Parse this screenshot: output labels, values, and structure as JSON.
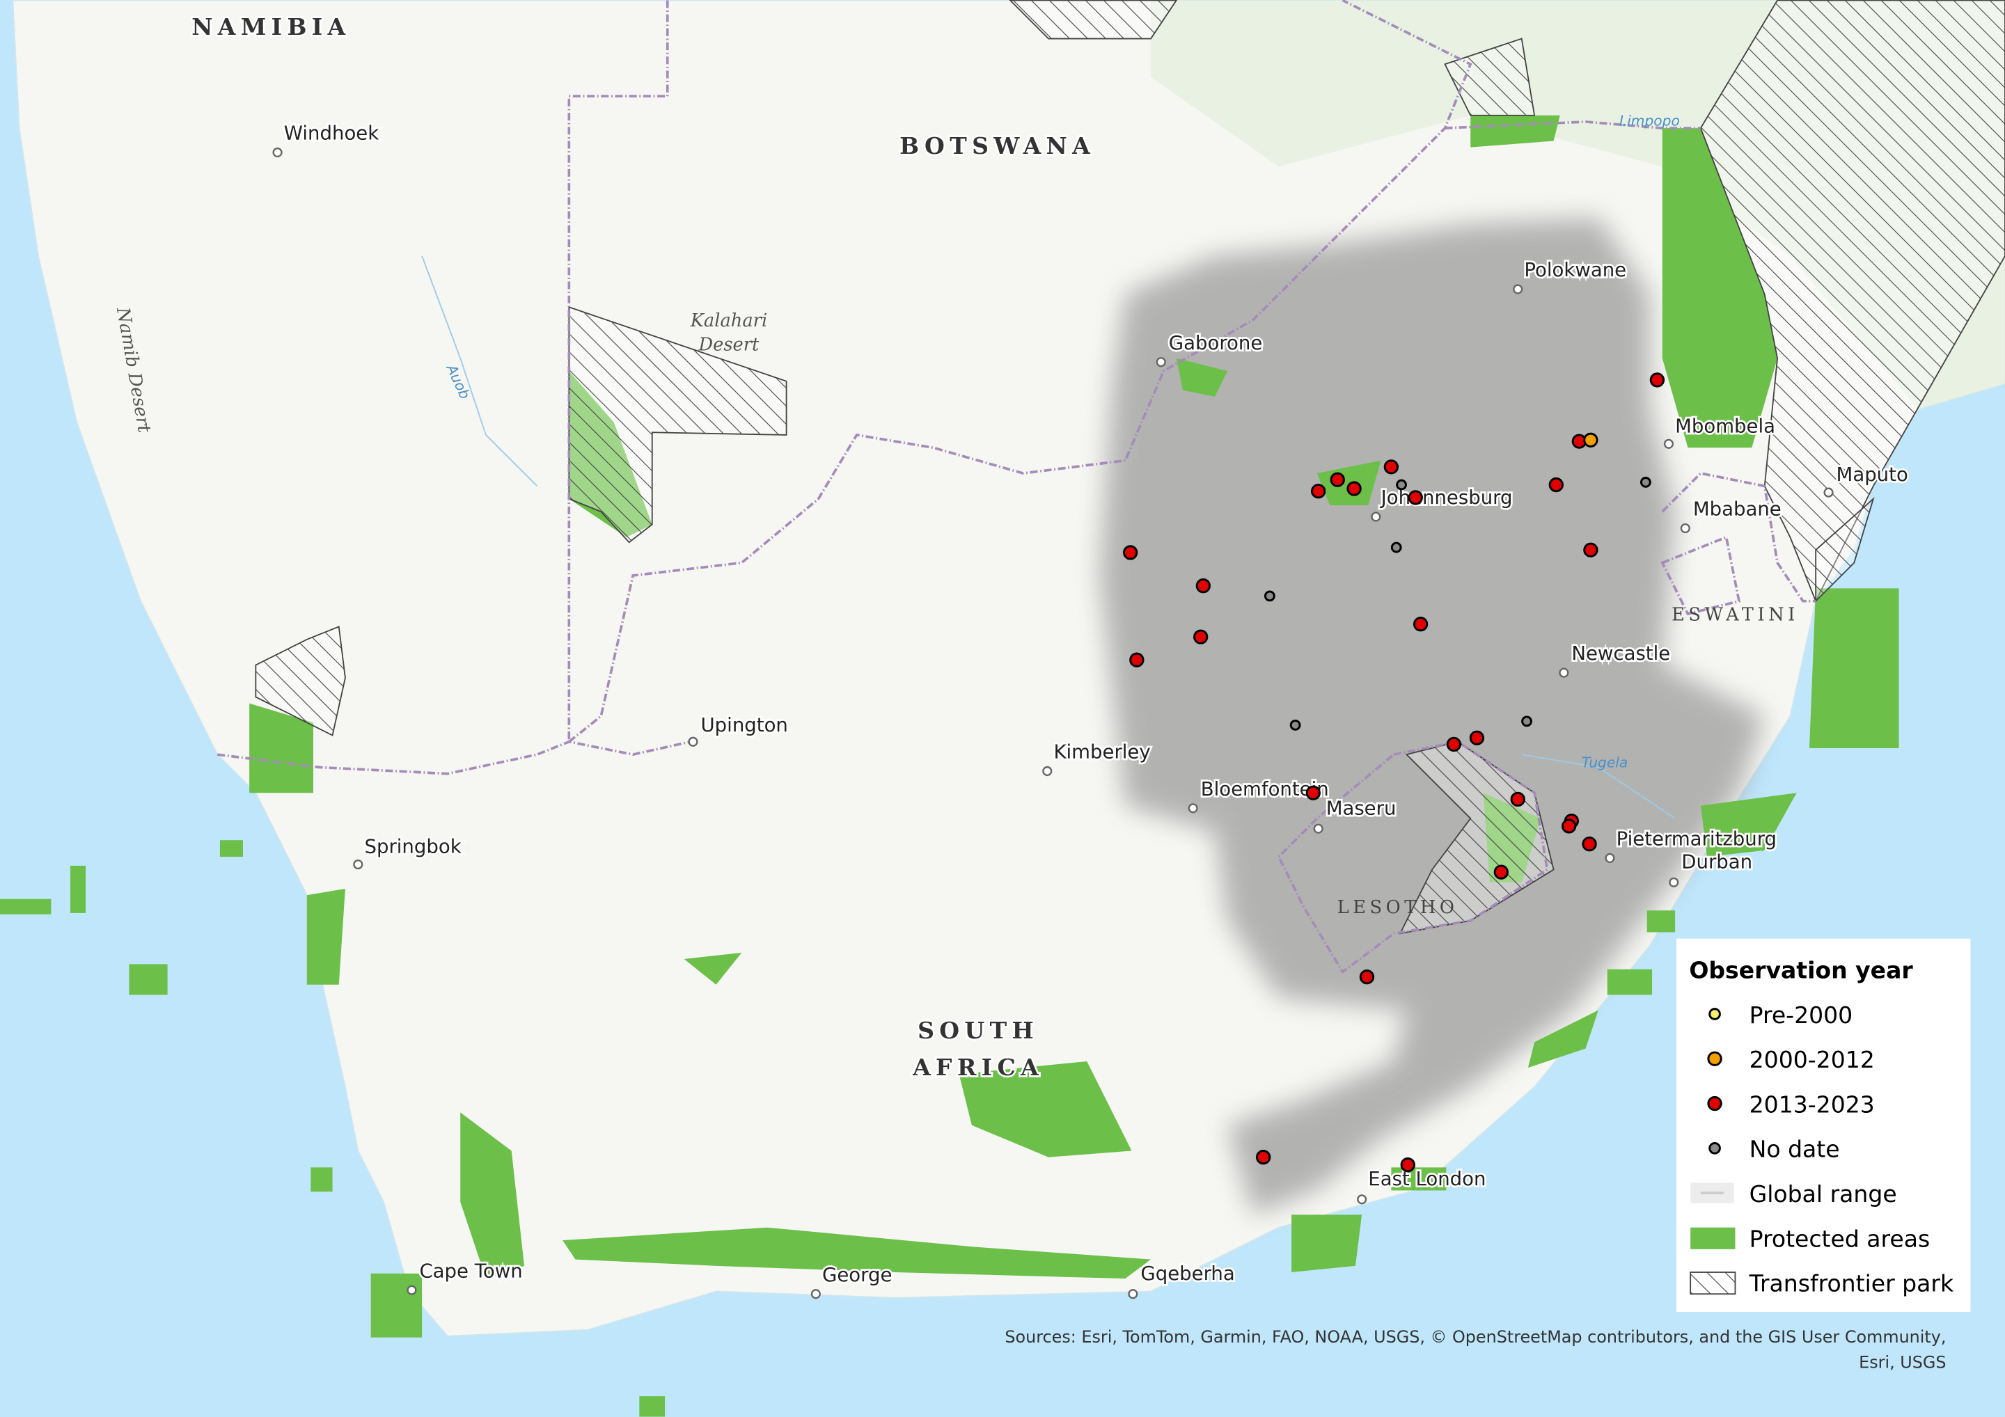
{
  "map": {
    "countries": {
      "namibia": "NAMIBIA",
      "botswana": "BOTSWANA",
      "south_africa_1": "SOUTH",
      "south_africa_2": "AFRICA",
      "lesotho": "LESOTHO",
      "eswatini": "ESWATINI"
    },
    "physical": {
      "kalahari_1": "Kalahari",
      "kalahari_2": "Desert",
      "namib": "Namib Desert",
      "auob": "Auob",
      "limpopo": "Limpopo",
      "tugela": "Tugela"
    },
    "cities": {
      "windhoek": "Windhoek",
      "gaborone": "Gaborone",
      "polokwane": "Polokwane",
      "mbombela": "Mbombela",
      "maputo": "Maputo",
      "mbabane": "Mbabane",
      "johannesburg": "Johannesburg",
      "newcastle": "Newcastle",
      "upington": "Upington",
      "kimberley": "Kimberley",
      "bloemfontein": "Bloemfontein",
      "maseru": "Maseru",
      "pietermaritzburg": "Pietermaritzburg",
      "durban": "Durban",
      "springbok": "Springbok",
      "east_london": "East London",
      "cape_town": "Cape Town",
      "george": "George",
      "gqeberha": "Gqeberha"
    },
    "observation_counts": {
      "pre_2000": 0,
      "2000_2012": 1,
      "2013_2023": 25,
      "no_date": 6
    }
  },
  "legend": {
    "title": "Observation year",
    "items": [
      {
        "label": "Pre-2000",
        "color": "#f7f06a"
      },
      {
        "label": "2000-2012",
        "color": "#f5a000"
      },
      {
        "label": "2013-2023",
        "color": "#e00000"
      },
      {
        "label": "No date",
        "color": "#8c8c8c"
      },
      {
        "label": "Global range",
        "color": "#9a9a9a"
      },
      {
        "label": "Protected areas",
        "color": "#6cc04a"
      },
      {
        "label": "Transfrontier park",
        "color": "#444444"
      }
    ]
  },
  "attribution": {
    "line1": "Sources: Esri, TomTom, Garmin, FAO, NOAA, USGS, © OpenStreetMap contributors, and the GIS User Community,",
    "line2": "Esri, USGS"
  }
}
